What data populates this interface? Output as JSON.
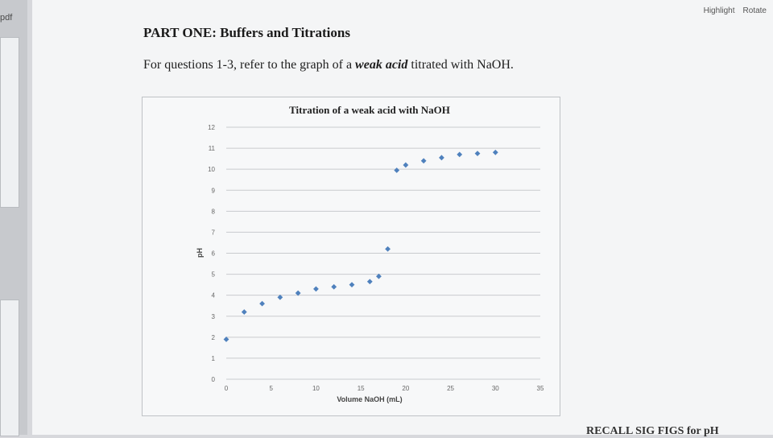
{
  "viewer": {
    "file_label": "pdf",
    "toolbar": {
      "highlight": "Highlight",
      "rotate": "Rotate"
    }
  },
  "document": {
    "heading": "PART ONE: Buffers and Titrations",
    "instruction_before": "For questions 1-3, refer to the graph of a ",
    "instruction_emphasis": "weak acid",
    "instruction_after": " titrated with NaOH.",
    "footer_fragment": "RECALL SIG FIGS for pH"
  },
  "chart_data": {
    "type": "scatter",
    "title": "Titration of a weak acid with NaOH",
    "xlabel": "Volume NaOH (mL)",
    "ylabel": "pH",
    "xlim": [
      0,
      35
    ],
    "ylim": [
      0,
      12
    ],
    "x_ticks": [
      0,
      5,
      10,
      15,
      20,
      25,
      30,
      35
    ],
    "y_ticks": [
      0,
      1,
      2,
      3,
      4,
      5,
      6,
      7,
      8,
      9,
      10,
      11,
      12
    ],
    "grid": true,
    "marker_color": "#4f81bd",
    "x": [
      0,
      2,
      4,
      6,
      8,
      10,
      12,
      14,
      16,
      17,
      18,
      19,
      20,
      22,
      24,
      26,
      28,
      30
    ],
    "y": [
      1.9,
      3.2,
      3.6,
      3.9,
      4.1,
      4.3,
      4.4,
      4.5,
      4.65,
      4.9,
      6.2,
      9.95,
      10.2,
      10.4,
      10.55,
      10.7,
      10.75,
      10.8
    ]
  }
}
